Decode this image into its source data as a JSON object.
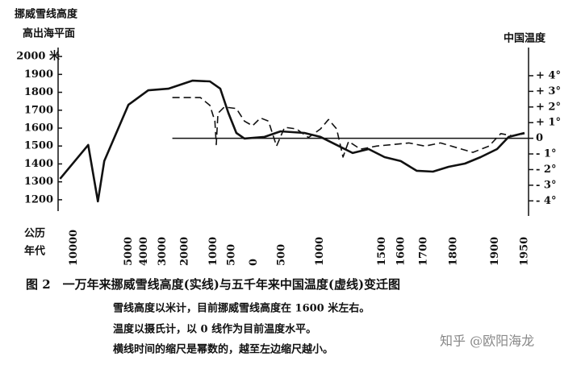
{
  "chart_data": {
    "type": "line",
    "title": "图 2　一万年来挪威雪线高度(实线)与五千年来中国温度(虚线)变迁图",
    "notes": [
      "雪线高度以米计，目前挪威雪线高度在 1600 米左右。",
      "温度以摄氏计，以 0 线作为目前温度水平。",
      "横线时间的缩尺是幂数的，越至左边缩尺越小。"
    ],
    "ylabel": [
      "挪威雪线高度",
      "高出海平面"
    ],
    "y2label": "中国温度",
    "xlabel": [
      "公历",
      "年代"
    ],
    "xlim": [
      -12000,
      1950
    ],
    "xticks": [
      {
        "value": -10000,
        "label": "10000"
      },
      {
        "value": -5000,
        "label": "5000"
      },
      {
        "value": -4000,
        "label": "4000"
      },
      {
        "value": -3000,
        "label": "3000"
      },
      {
        "value": -2000,
        "label": "2000"
      },
      {
        "value": -1000,
        "label": "1000"
      },
      {
        "value": -500,
        "label": "500"
      },
      0,
      500,
      1000,
      1500,
      1600,
      1700,
      1800,
      1900,
      1950
    ],
    "ylim": [
      1150,
      2050
    ],
    "yticks": [
      {
        "value": 2000,
        "label": "2000 米"
      },
      1900,
      1800,
      1700,
      1600,
      1500,
      1400,
      1300,
      1200
    ],
    "y2lim": [
      -4.5,
      5.8
    ],
    "y2ticks": [
      {
        "value": 4,
        "label": "+ 4°"
      },
      {
        "value": 3,
        "label": "+ 3°"
      },
      {
        "value": 2,
        "label": "+ 2°"
      },
      {
        "value": 1,
        "label": "+ 1°"
      },
      0,
      {
        "value": -1,
        "label": "- 1°"
      },
      {
        "value": -2,
        "label": "- 2°"
      },
      {
        "value": -3,
        "label": "- 3°"
      },
      {
        "value": -4,
        "label": "- 4°"
      }
    ],
    "series": [
      {
        "color": "#111111",
        "style": "solid",
        "x": [
          -11740,
          -8420,
          -7472,
          -6895,
          -5012,
          -3761,
          -2719,
          -1711,
          -1114,
          -804,
          -585,
          -383,
          -196,
          212,
          486,
          821,
          1006,
          1165,
          1300,
          1415,
          1514,
          1599,
          1671,
          1734,
          1786,
          1832,
          1870,
          1904,
          1925,
          1950
        ],
        "values": [
          1317,
          1506,
          1191,
          1416,
          1730,
          1811,
          1820,
          1865,
          1861,
          1820,
          1685,
          1573,
          1542,
          1551,
          1582,
          1573,
          1551,
          1506,
          1461,
          1483,
          1438,
          1416,
          1362,
          1357,
          1384,
          1402,
          1438,
          1483,
          1551,
          1573
        ]
      },
      {
        "color": "#111111",
        "style": "dashed",
        "axis": "y2",
        "x": [
          -2534,
          -1424,
          -1114,
          -962,
          -920,
          -872,
          -693,
          -383,
          -196,
          -23,
          137,
          284,
          421,
          548,
          716,
          870,
          1006,
          1088,
          1165,
          1221,
          1268,
          1359,
          1466,
          1558,
          1637,
          1704,
          1760,
          1810,
          1852,
          1888,
          1911,
          1932,
          1950
        ],
        "values": [
          2.6,
          2.6,
          2.1,
          1.1,
          -0.4,
          1.6,
          2.0,
          1.9,
          1.1,
          0.8,
          1.3,
          1.1,
          -0.5,
          0.7,
          0.6,
          0.05,
          0.6,
          1.2,
          0.6,
          -1.2,
          -0.2,
          -0.7,
          -0.5,
          -0.4,
          -0.3,
          -0.5,
          -0.3,
          -0.6,
          -0.9,
          -0.5,
          0.3,
          0.15,
          0.3
        ]
      }
    ]
  },
  "watermark": "知乎 @欧阳海龙"
}
